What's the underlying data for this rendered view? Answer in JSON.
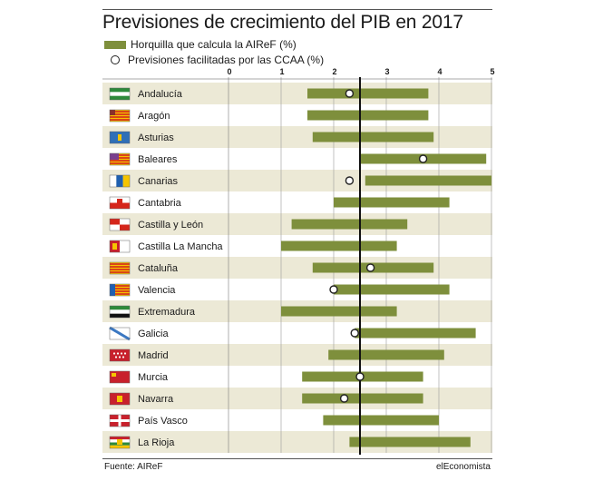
{
  "title": "Previsiones de crecimiento del PIB en 2017",
  "legend": {
    "range": "Horquilla que calcula la AIReF (%)",
    "point": "Previsiones facilitadas por las CCAA (%)"
  },
  "footer": {
    "source": "Fuente: AIReF",
    "brand": "elEconomista"
  },
  "colors": {
    "bar": "#7e8f3c",
    "stripe": "#ece9d6",
    "axis": "#111111"
  },
  "chart_data": {
    "type": "range-bar",
    "title": "Previsiones de crecimiento del PIB en 2017",
    "x_ticks": [
      0,
      1,
      2,
      3,
      4,
      5
    ],
    "xlim": [
      0,
      5
    ],
    "reference_line": 2.5,
    "grid": true,
    "series": [
      {
        "name": "Horquilla que calcula la AIReF (%)",
        "kind": "range"
      },
      {
        "name": "Previsiones facilitadas por las CCAA (%)",
        "kind": "point"
      }
    ],
    "rows": [
      {
        "region": "Andalucía",
        "flag": "andalucia-flag-icon",
        "low": 1.5,
        "high": 3.8,
        "forecast": 2.3
      },
      {
        "region": "Aragón",
        "flag": "aragon-flag-icon",
        "low": 1.5,
        "high": 3.8,
        "forecast": null
      },
      {
        "region": "Asturias",
        "flag": "asturias-flag-icon",
        "low": 1.6,
        "high": 3.9,
        "forecast": null
      },
      {
        "region": "Baleares",
        "flag": "baleares-flag-icon",
        "low": 2.5,
        "high": 4.9,
        "forecast": 3.7
      },
      {
        "region": "Canarias",
        "flag": "canarias-flag-icon",
        "low": 2.6,
        "high": 5.0,
        "forecast": 2.3
      },
      {
        "region": "Cantabria",
        "flag": "cantabria-flag-icon",
        "low": 2.0,
        "high": 4.2,
        "forecast": null
      },
      {
        "region": "Castilla y León",
        "flag": "castilla-leon-flag-icon",
        "low": 1.2,
        "high": 3.4,
        "forecast": null
      },
      {
        "region": "Castilla La Mancha",
        "flag": "castilla-la-mancha-flag-icon",
        "low": 1.0,
        "high": 3.2,
        "forecast": null
      },
      {
        "region": "Cataluña",
        "flag": "cataluna-flag-icon",
        "low": 1.6,
        "high": 3.9,
        "forecast": 2.7
      },
      {
        "region": "Valencia",
        "flag": "valencia-flag-icon",
        "low": 2.0,
        "high": 4.2,
        "forecast": 2.0
      },
      {
        "region": "Extremadura",
        "flag": "extremadura-flag-icon",
        "low": 1.0,
        "high": 3.2,
        "forecast": null
      },
      {
        "region": "Galicia",
        "flag": "galicia-flag-icon",
        "low": 2.4,
        "high": 4.7,
        "forecast": 2.4
      },
      {
        "region": "Madrid",
        "flag": "madrid-flag-icon",
        "low": 1.9,
        "high": 4.1,
        "forecast": null
      },
      {
        "region": "Murcia",
        "flag": "murcia-flag-icon",
        "low": 1.4,
        "high": 3.7,
        "forecast": 2.5
      },
      {
        "region": "Navarra",
        "flag": "navarra-flag-icon",
        "low": 1.4,
        "high": 3.7,
        "forecast": 2.2
      },
      {
        "region": "País Vasco",
        "flag": "pais-vasco-flag-icon",
        "low": 1.8,
        "high": 4.0,
        "forecast": null
      },
      {
        "region": "La Rioja",
        "flag": "la-rioja-flag-icon",
        "low": 2.3,
        "high": 4.6,
        "forecast": null
      }
    ]
  }
}
